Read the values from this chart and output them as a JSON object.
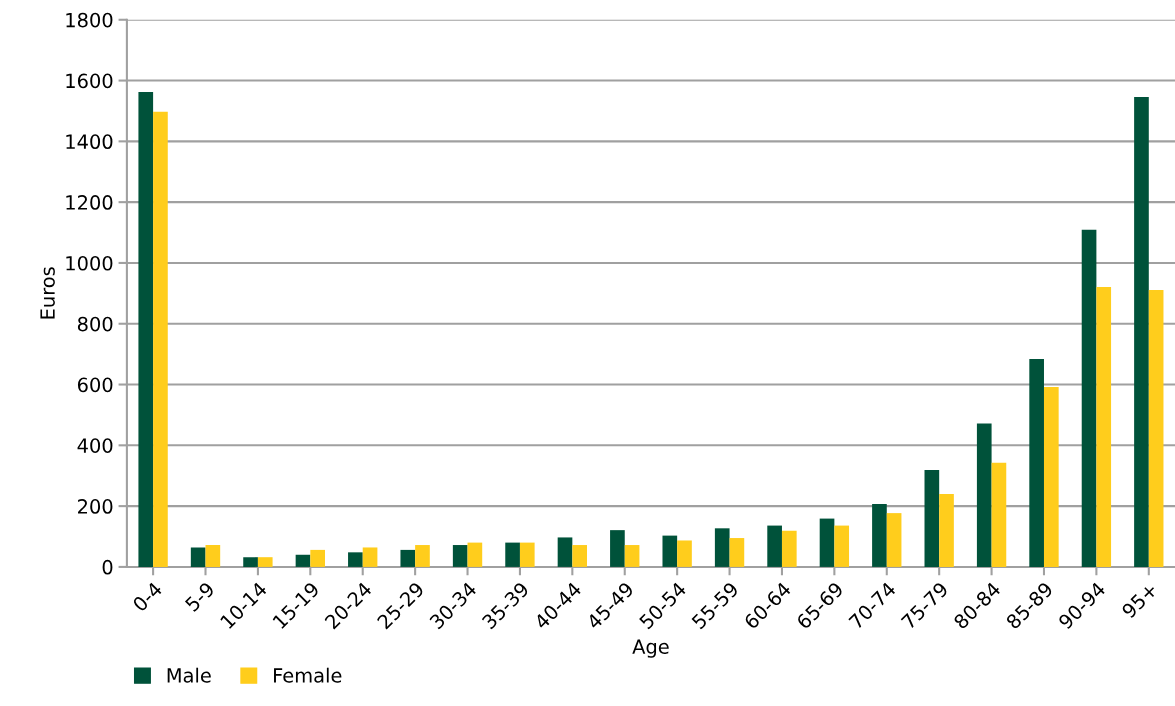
{
  "chart_data": {
    "type": "bar",
    "xlabel": "Age",
    "ylabel": "Euros",
    "categories": [
      "0-4",
      "5-9",
      "10-14",
      "15-19",
      "20-24",
      "25-29",
      "30-34",
      "35-39",
      "40-44",
      "45-49",
      "50-54",
      "55-59",
      "60-64",
      "65-69",
      "70-74",
      "75-79",
      "80-84",
      "85-89",
      "90-94",
      "95+"
    ],
    "series": [
      {
        "name": "Male",
        "color": "#00523a",
        "values": [
          1562,
          64,
          32,
          40,
          48,
          56,
          72,
          80,
          97,
          121,
          103,
          127,
          136,
          159,
          207,
          319,
          472,
          684,
          1109,
          1546
        ]
      },
      {
        "name": "Female",
        "color": "#ffcd1c",
        "values": [
          1497,
          72,
          32,
          56,
          64,
          72,
          80,
          80,
          72,
          72,
          87,
          95,
          119,
          136,
          177,
          240,
          343,
          592,
          921,
          911
        ]
      }
    ],
    "ylim": [
      0,
      1800
    ],
    "yticks": [
      0,
      200,
      400,
      600,
      800,
      1000,
      1200,
      1400,
      1600,
      1800
    ],
    "grid": "y",
    "legend": "bottom left"
  }
}
